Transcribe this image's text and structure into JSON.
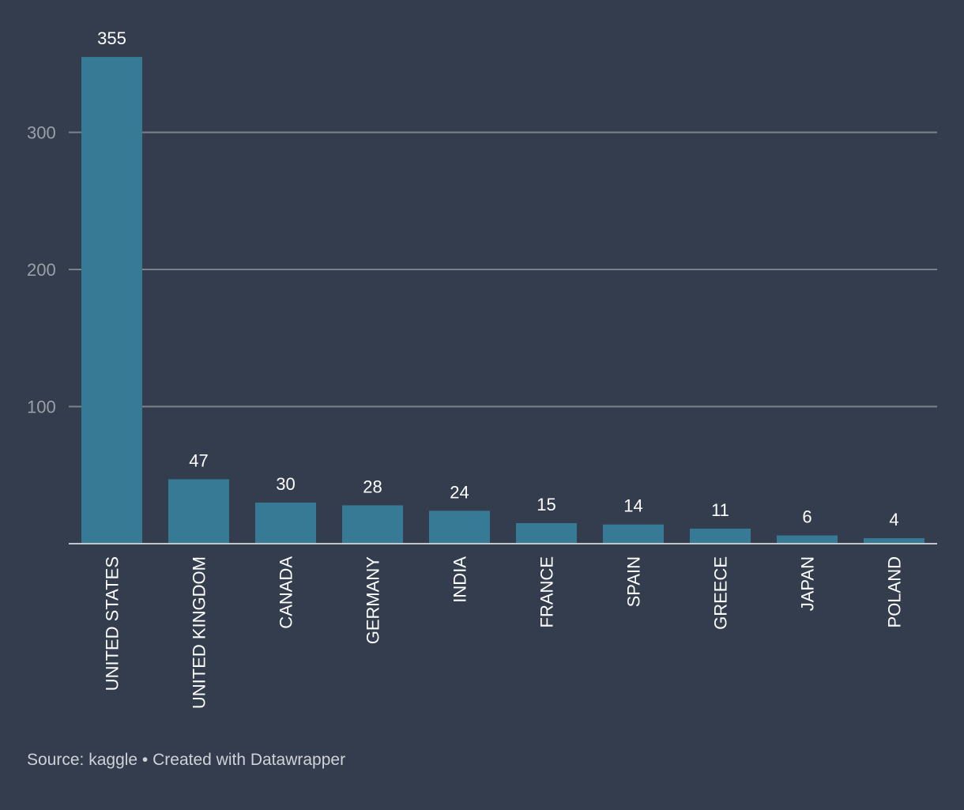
{
  "chart_data": {
    "type": "bar",
    "categories": [
      "UNITED STATES",
      "UNITED KINGDOM",
      "CANADA",
      "GERMANY",
      "INDIA",
      "FRANCE",
      "SPAIN",
      "GREECE",
      "JAPAN",
      "POLAND"
    ],
    "values": [
      355,
      47,
      30,
      28,
      24,
      15,
      14,
      11,
      6,
      4
    ],
    "data_labels": [
      "355",
      "47",
      "30",
      "28",
      "24",
      "15",
      "14",
      "11",
      "6",
      "4"
    ],
    "title": "",
    "xlabel": "",
    "ylabel": "",
    "ylim": [
      0,
      355
    ],
    "y_ticks": [
      100,
      200,
      300
    ],
    "y_tick_labels": [
      "100",
      "200",
      "300"
    ],
    "grid": true,
    "legend": "none",
    "colors": {
      "background": "#333d4d",
      "bar": "#367a96",
      "grid": "#7b828c",
      "axis": "#c3c7cc",
      "tick_label": "#9aa0a8",
      "data_label": "#ffffff",
      "category_label": "#ffffff"
    }
  },
  "footer": {
    "source": "Source: kaggle • Created with Datawrapper"
  }
}
